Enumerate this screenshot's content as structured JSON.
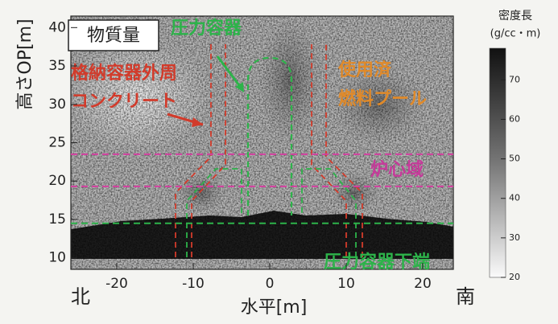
{
  "chart_data": {
    "type": "heatmap",
    "xlabel": "水平[m]",
    "ylabel": "高さOP[m]",
    "xlim": [
      -26,
      24
    ],
    "xticks": [
      -20,
      -10,
      0,
      10,
      20
    ],
    "ylim": [
      8.5,
      41.5
    ],
    "yticks": [
      10,
      15,
      20,
      25,
      30,
      35,
      40
    ],
    "direction_labels": [
      "北",
      "南"
    ],
    "colorbar": {
      "title": "密度長",
      "unit": "(g/cc・m)",
      "lim": [
        20,
        78
      ],
      "ticks": [
        20,
        30,
        40,
        50,
        60,
        70
      ]
    },
    "hlines": [
      {
        "value": 23.5,
        "color": "#d43fa0"
      },
      {
        "value": 19.3,
        "color": "#d43fa0"
      },
      {
        "value": 14.5,
        "color": "#2db34a"
      }
    ],
    "annotations": [
      "物質量",
      "圧力容器",
      "格納容器外周",
      "コンクリート",
      "使用済",
      "燃料プール",
      "炉心域",
      "圧力容器下端"
    ]
  }
}
